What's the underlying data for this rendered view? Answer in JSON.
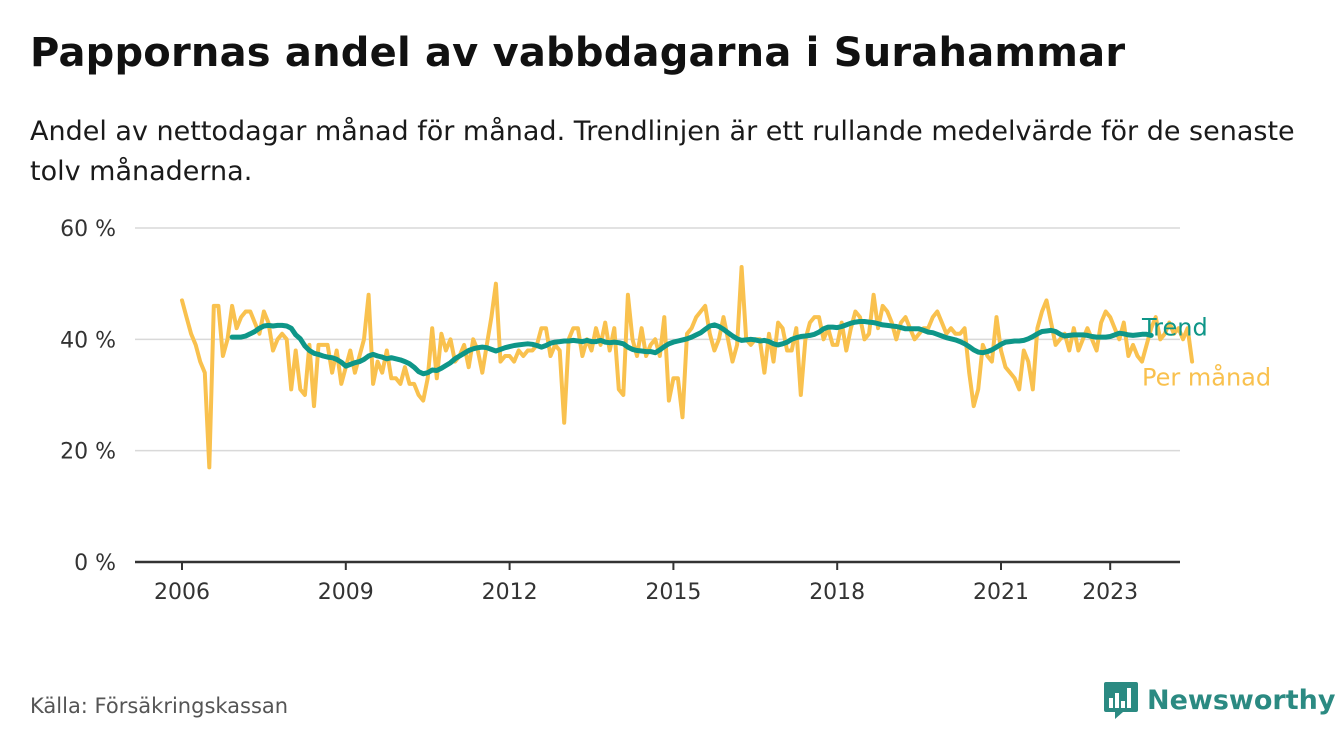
{
  "header": {
    "title": "Pappornas andel av vabbdagarna i Surahammar",
    "subtitle": "Andel av nettodagar månad för månad. Trendlinjen är ett rullande medelvärde för de senaste tolv månaderna."
  },
  "footer": {
    "source": "Källa: Försäkringskassan",
    "brand": "Newsworthy"
  },
  "colors": {
    "monthly": "#f9c14e",
    "trend": "#0e9688",
    "grid": "#d9d9d9",
    "axis": "#333333",
    "brand": "#2b8a82"
  },
  "chart_data": {
    "type": "line",
    "y_ticks": [
      "0 %",
      "20 %",
      "40 %",
      "60 %"
    ],
    "y_tick_values": [
      0,
      20,
      40,
      60
    ],
    "x_ticks": [
      "2006",
      "2009",
      "2012",
      "2015",
      "2018",
      "2021",
      "2023"
    ],
    "x_tick_values": [
      2006,
      2009,
      2012,
      2015,
      2018,
      2021,
      2023
    ],
    "xlim": [
      2006,
      2023.33
    ],
    "ylim": [
      0,
      60
    ],
    "grid": true,
    "series": [
      {
        "name": "Per månad",
        "color": "#f9c14e",
        "x_start": "2006-01",
        "values": [
          47,
          44,
          41,
          39,
          36,
          34,
          17,
          46,
          46,
          37,
          40,
          46,
          42,
          44,
          45,
          45,
          43,
          41,
          45,
          43,
          38,
          40,
          41,
          40,
          31,
          38,
          31,
          30,
          39,
          28,
          39,
          39,
          39,
          34,
          38,
          32,
          35,
          38,
          34,
          37,
          40,
          48,
          32,
          36,
          34,
          38,
          33,
          33,
          32,
          35,
          32,
          32,
          30,
          29,
          33,
          42,
          33,
          41,
          38,
          40,
          36,
          37,
          39,
          35,
          40,
          38,
          34,
          39,
          44,
          50,
          36,
          37,
          37,
          36,
          38,
          37,
          38,
          38,
          39,
          42,
          42,
          37,
          39,
          38,
          25,
          40,
          42,
          42,
          37,
          40,
          38,
          42,
          39,
          43,
          38,
          42,
          31,
          30,
          48,
          40,
          37,
          42,
          37,
          39,
          40,
          37,
          44,
          29,
          33,
          33,
          26,
          41,
          42,
          44,
          45,
          46,
          41,
          38,
          40,
          44,
          40,
          36,
          39,
          53,
          40,
          39,
          40,
          40,
          34,
          41,
          36,
          43,
          42,
          38,
          38,
          42,
          30,
          40,
          43,
          44,
          44,
          40,
          42,
          39,
          39,
          43,
          38,
          42,
          45,
          44,
          40,
          41,
          48,
          42,
          46,
          45,
          43,
          40,
          43,
          44,
          42,
          40,
          41,
          42,
          42,
          44,
          45,
          43,
          41,
          42,
          41,
          41,
          42,
          34,
          28,
          31,
          39,
          37,
          36,
          44,
          38,
          35,
          34,
          33,
          31,
          38,
          36,
          31,
          42,
          45,
          47,
          43,
          39,
          40,
          41,
          38,
          42,
          38,
          40,
          42,
          40,
          38,
          43,
          45,
          44,
          42,
          40,
          43,
          37,
          39,
          37,
          36,
          39,
          42,
          44,
          40,
          41,
          43,
          41,
          42,
          40,
          42,
          36
        ]
      },
      {
        "name": "Trend",
        "color": "#0e9688",
        "x_start": "2006-12",
        "values": [
          40.4,
          40.4,
          40.4,
          40.6,
          41.0,
          41.4,
          42.0,
          42.4,
          42.5,
          42.4,
          42.5,
          42.5,
          42.4,
          42.0,
          40.8,
          40.1,
          38.8,
          38.0,
          37.5,
          37.3,
          37.0,
          36.8,
          36.7,
          36.4,
          35.9,
          35.2,
          35.5,
          35.8,
          36.0,
          36.4,
          37.0,
          37.3,
          37.0,
          36.8,
          36.5,
          36.7,
          36.5,
          36.3,
          36.0,
          35.6,
          35.0,
          34.2,
          33.8,
          34.0,
          34.5,
          34.4,
          34.8,
          35.3,
          35.8,
          36.5,
          37.0,
          37.5,
          38.0,
          38.3,
          38.5,
          38.6,
          38.5,
          38.2,
          37.9,
          38.2,
          38.5,
          38.7,
          38.9,
          39.0,
          39.1,
          39.2,
          39.1,
          38.9,
          38.6,
          38.9,
          39.3,
          39.5,
          39.6,
          39.7,
          39.7,
          39.8,
          39.7,
          39.6,
          39.8,
          39.6,
          39.6,
          39.8,
          39.5,
          39.4,
          39.5,
          39.4,
          39.2,
          38.6,
          38.2,
          38.0,
          37.9,
          37.8,
          37.8,
          37.6,
          38.1,
          38.7,
          39.2,
          39.5,
          39.7,
          39.9,
          40.1,
          40.4,
          40.8,
          41.2,
          41.8,
          42.4,
          42.6,
          42.3,
          41.8,
          41.2,
          40.6,
          40.1,
          39.8,
          39.9,
          40.0,
          39.9,
          39.7,
          39.8,
          39.6,
          39.2,
          39.0,
          39.2,
          39.5,
          40.0,
          40.3,
          40.5,
          40.6,
          40.7,
          40.9,
          41.3,
          41.9,
          42.2,
          42.2,
          42.1,
          42.3,
          42.6,
          42.9,
          43.1,
          43.2,
          43.2,
          43.1,
          43.0,
          42.8,
          42.6,
          42.5,
          42.4,
          42.3,
          42.1,
          41.9,
          41.9,
          41.9,
          41.9,
          41.6,
          41.3,
          41.2,
          40.9,
          40.6,
          40.3,
          40.1,
          39.9,
          39.6,
          39.2,
          38.7,
          38.1,
          37.7,
          37.6,
          37.8,
          38.1,
          38.6,
          39.1,
          39.5,
          39.6,
          39.7,
          39.7,
          39.8,
          40.1,
          40.5,
          41.0,
          41.4,
          41.5,
          41.6,
          41.4,
          40.9,
          40.6,
          40.7,
          40.8,
          40.8,
          40.8,
          40.7,
          40.5,
          40.4,
          40.4,
          40.4,
          40.5,
          40.8,
          41.1,
          41.0,
          40.8,
          40.7,
          40.8,
          40.9,
          40.9,
          40.7
        ]
      }
    ]
  }
}
